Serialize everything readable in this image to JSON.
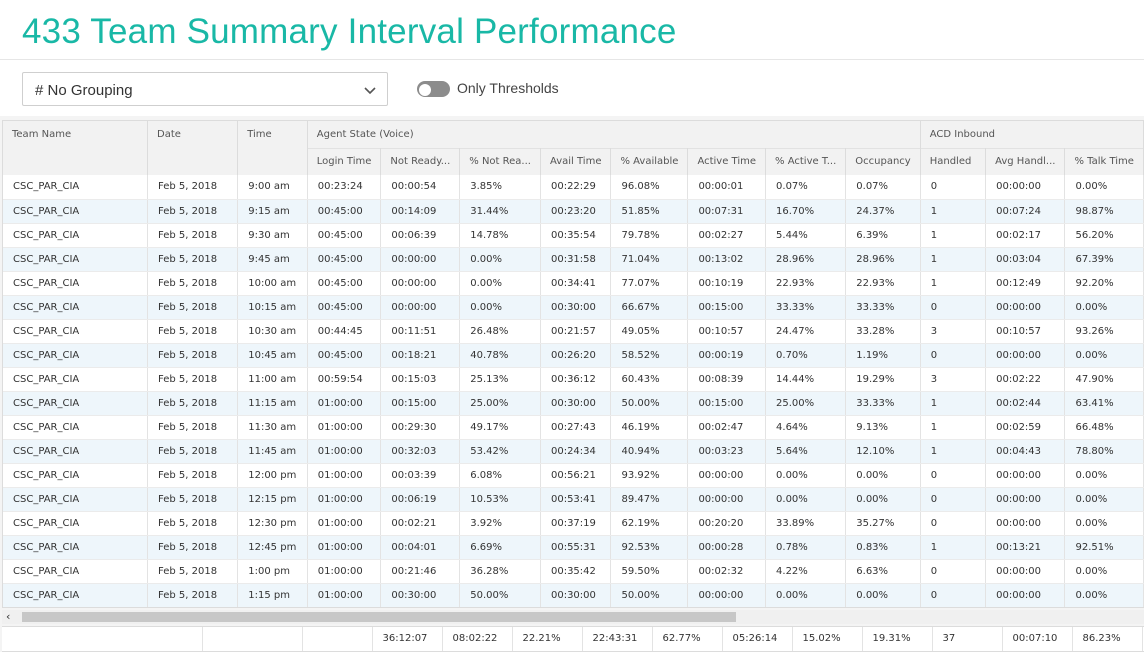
{
  "page": {
    "title": "433 Team Summary Interval Performance"
  },
  "controls": {
    "grouping_value": "# No Grouping",
    "thresholds_label": "Only Thresholds",
    "thresholds_on": false
  },
  "grid": {
    "group_headers": {
      "team_name": "Team Name",
      "date": "Date",
      "time": "Time",
      "agent_state": "Agent State (Voice)",
      "acd_inbound": "ACD Inbound"
    },
    "columns": [
      "Login Time",
      "Not Ready...",
      "% Not Rea...",
      "Avail Time",
      "% Available",
      "Active Time",
      "% Active T...",
      "Occupancy",
      "Handled",
      "Avg Handl...",
      "% Talk Time"
    ],
    "rows": [
      [
        "CSC_PAR_CIA",
        "Feb 5, 2018",
        "9:00 am",
        "00:23:24",
        "00:00:54",
        "3.85%",
        "00:22:29",
        "96.08%",
        "00:00:01",
        "0.07%",
        "0.07%",
        "0",
        "00:00:00",
        "0.00%"
      ],
      [
        "CSC_PAR_CIA",
        "Feb 5, 2018",
        "9:15 am",
        "00:45:00",
        "00:14:09",
        "31.44%",
        "00:23:20",
        "51.85%",
        "00:07:31",
        "16.70%",
        "24.37%",
        "1",
        "00:07:24",
        "98.87%"
      ],
      [
        "CSC_PAR_CIA",
        "Feb 5, 2018",
        "9:30 am",
        "00:45:00",
        "00:06:39",
        "14.78%",
        "00:35:54",
        "79.78%",
        "00:02:27",
        "5.44%",
        "6.39%",
        "1",
        "00:02:17",
        "56.20%"
      ],
      [
        "CSC_PAR_CIA",
        "Feb 5, 2018",
        "9:45 am",
        "00:45:00",
        "00:00:00",
        "0.00%",
        "00:31:58",
        "71.04%",
        "00:13:02",
        "28.96%",
        "28.96%",
        "1",
        "00:03:04",
        "67.39%"
      ],
      [
        "CSC_PAR_CIA",
        "Feb 5, 2018",
        "10:00 am",
        "00:45:00",
        "00:00:00",
        "0.00%",
        "00:34:41",
        "77.07%",
        "00:10:19",
        "22.93%",
        "22.93%",
        "1",
        "00:12:49",
        "92.20%"
      ],
      [
        "CSC_PAR_CIA",
        "Feb 5, 2018",
        "10:15 am",
        "00:45:00",
        "00:00:00",
        "0.00%",
        "00:30:00",
        "66.67%",
        "00:15:00",
        "33.33%",
        "33.33%",
        "0",
        "00:00:00",
        "0.00%"
      ],
      [
        "CSC_PAR_CIA",
        "Feb 5, 2018",
        "10:30 am",
        "00:44:45",
        "00:11:51",
        "26.48%",
        "00:21:57",
        "49.05%",
        "00:10:57",
        "24.47%",
        "33.28%",
        "3",
        "00:10:57",
        "93.26%"
      ],
      [
        "CSC_PAR_CIA",
        "Feb 5, 2018",
        "10:45 am",
        "00:45:00",
        "00:18:21",
        "40.78%",
        "00:26:20",
        "58.52%",
        "00:00:19",
        "0.70%",
        "1.19%",
        "0",
        "00:00:00",
        "0.00%"
      ],
      [
        "CSC_PAR_CIA",
        "Feb 5, 2018",
        "11:00 am",
        "00:59:54",
        "00:15:03",
        "25.13%",
        "00:36:12",
        "60.43%",
        "00:08:39",
        "14.44%",
        "19.29%",
        "3",
        "00:02:22",
        "47.90%"
      ],
      [
        "CSC_PAR_CIA",
        "Feb 5, 2018",
        "11:15 am",
        "01:00:00",
        "00:15:00",
        "25.00%",
        "00:30:00",
        "50.00%",
        "00:15:00",
        "25.00%",
        "33.33%",
        "1",
        "00:02:44",
        "63.41%"
      ],
      [
        "CSC_PAR_CIA",
        "Feb 5, 2018",
        "11:30 am",
        "01:00:00",
        "00:29:30",
        "49.17%",
        "00:27:43",
        "46.19%",
        "00:02:47",
        "4.64%",
        "9.13%",
        "1",
        "00:02:59",
        "66.48%"
      ],
      [
        "CSC_PAR_CIA",
        "Feb 5, 2018",
        "11:45 am",
        "01:00:00",
        "00:32:03",
        "53.42%",
        "00:24:34",
        "40.94%",
        "00:03:23",
        "5.64%",
        "12.10%",
        "1",
        "00:04:43",
        "78.80%"
      ],
      [
        "CSC_PAR_CIA",
        "Feb 5, 2018",
        "12:00 pm",
        "01:00:00",
        "00:03:39",
        "6.08%",
        "00:56:21",
        "93.92%",
        "00:00:00",
        "0.00%",
        "0.00%",
        "0",
        "00:00:00",
        "0.00%"
      ],
      [
        "CSC_PAR_CIA",
        "Feb 5, 2018",
        "12:15 pm",
        "01:00:00",
        "00:06:19",
        "10.53%",
        "00:53:41",
        "89.47%",
        "00:00:00",
        "0.00%",
        "0.00%",
        "0",
        "00:00:00",
        "0.00%"
      ],
      [
        "CSC_PAR_CIA",
        "Feb 5, 2018",
        "12:30 pm",
        "01:00:00",
        "00:02:21",
        "3.92%",
        "00:37:19",
        "62.19%",
        "00:20:20",
        "33.89%",
        "35.27%",
        "0",
        "00:00:00",
        "0.00%"
      ],
      [
        "CSC_PAR_CIA",
        "Feb 5, 2018",
        "12:45 pm",
        "01:00:00",
        "00:04:01",
        "6.69%",
        "00:55:31",
        "92.53%",
        "00:00:28",
        "0.78%",
        "0.83%",
        "1",
        "00:13:21",
        "92.51%"
      ],
      [
        "CSC_PAR_CIA",
        "Feb 5, 2018",
        "1:00 pm",
        "01:00:00",
        "00:21:46",
        "36.28%",
        "00:35:42",
        "59.50%",
        "00:02:32",
        "4.22%",
        "6.63%",
        "0",
        "00:00:00",
        "0.00%"
      ],
      [
        "CSC_PAR_CIA",
        "Feb 5, 2018",
        "1:15 pm",
        "01:00:00",
        "00:30:00",
        "50.00%",
        "00:30:00",
        "50.00%",
        "00:00:00",
        "0.00%",
        "0.00%",
        "0",
        "00:00:00",
        "0.00%"
      ]
    ],
    "totals": [
      "",
      "",
      "",
      "36:12:07",
      "08:02:22",
      "22.21%",
      "22:43:31",
      "62.77%",
      "05:26:14",
      "15.02%",
      "19.31%",
      "37",
      "00:07:10",
      "86.23%"
    ]
  },
  "scrollbar": {
    "left_arrow": "‹"
  }
}
